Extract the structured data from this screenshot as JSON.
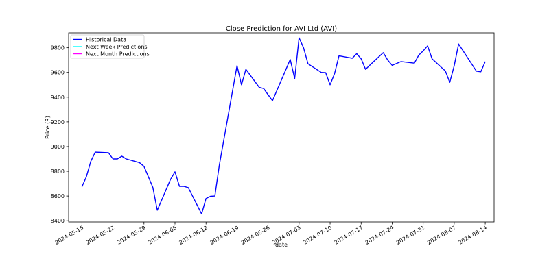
{
  "chart_data": {
    "type": "line",
    "title": "Close Prediction for AVI Ltd (AVI)",
    "xlabel": "date",
    "ylabel": "Price (R)",
    "xlim": [
      "2024-05-12",
      "2024-08-16"
    ],
    "ylim": [
      8390,
      9920
    ],
    "x_ticks": [
      "2024-05-15",
      "2024-05-22",
      "2024-05-29",
      "2024-06-05",
      "2024-06-12",
      "2024-06-19",
      "2024-06-26",
      "2024-07-03",
      "2024-07-10",
      "2024-07-17",
      "2024-07-24",
      "2024-07-31",
      "2024-08-07",
      "2024-08-14"
    ],
    "y_ticks": [
      8400,
      8600,
      8800,
      9000,
      9200,
      9400,
      9600,
      9800
    ],
    "grid": false,
    "legend_position": "top-left",
    "series": [
      {
        "name": "Historical Data",
        "color": "#0000ff",
        "points": [
          {
            "x": "2024-05-15",
            "y": 8675
          },
          {
            "x": "2024-05-16",
            "y": 8755
          },
          {
            "x": "2024-05-17",
            "y": 8880
          },
          {
            "x": "2024-05-18",
            "y": 8955
          },
          {
            "x": "2024-05-21",
            "y": 8950
          },
          {
            "x": "2024-05-22",
            "y": 8900
          },
          {
            "x": "2024-05-23",
            "y": 8900
          },
          {
            "x": "2024-05-24",
            "y": 8922
          },
          {
            "x": "2024-05-25",
            "y": 8900
          },
          {
            "x": "2024-05-28",
            "y": 8870
          },
          {
            "x": "2024-05-29",
            "y": 8840
          },
          {
            "x": "2024-05-31",
            "y": 8670
          },
          {
            "x": "2024-06-01",
            "y": 8485
          },
          {
            "x": "2024-06-04",
            "y": 8735
          },
          {
            "x": "2024-06-05",
            "y": 8795
          },
          {
            "x": "2024-06-06",
            "y": 8678
          },
          {
            "x": "2024-06-07",
            "y": 8678
          },
          {
            "x": "2024-06-08",
            "y": 8668
          },
          {
            "x": "2024-06-11",
            "y": 8455
          },
          {
            "x": "2024-06-12",
            "y": 8580
          },
          {
            "x": "2024-06-13",
            "y": 8598
          },
          {
            "x": "2024-06-14",
            "y": 8600
          },
          {
            "x": "2024-06-15",
            "y": 8850
          },
          {
            "x": "2024-06-19",
            "y": 9655
          },
          {
            "x": "2024-06-20",
            "y": 9500
          },
          {
            "x": "2024-06-21",
            "y": 9625
          },
          {
            "x": "2024-06-24",
            "y": 9480
          },
          {
            "x": "2024-06-25",
            "y": 9470
          },
          {
            "x": "2024-06-26",
            "y": 9420
          },
          {
            "x": "2024-06-27",
            "y": 9372
          },
          {
            "x": "2024-07-01",
            "y": 9705
          },
          {
            "x": "2024-07-02",
            "y": 9550
          },
          {
            "x": "2024-07-03",
            "y": 9880
          },
          {
            "x": "2024-07-04",
            "y": 9800
          },
          {
            "x": "2024-07-05",
            "y": 9670
          },
          {
            "x": "2024-07-08",
            "y": 9600
          },
          {
            "x": "2024-07-09",
            "y": 9598
          },
          {
            "x": "2024-07-10",
            "y": 9500
          },
          {
            "x": "2024-07-11",
            "y": 9590
          },
          {
            "x": "2024-07-12",
            "y": 9735
          },
          {
            "x": "2024-07-15",
            "y": 9715
          },
          {
            "x": "2024-07-16",
            "y": 9752
          },
          {
            "x": "2024-07-17",
            "y": 9710
          },
          {
            "x": "2024-07-18",
            "y": 9625
          },
          {
            "x": "2024-07-19",
            "y": 9660
          },
          {
            "x": "2024-07-22",
            "y": 9760
          },
          {
            "x": "2024-07-23",
            "y": 9700
          },
          {
            "x": "2024-07-24",
            "y": 9657
          },
          {
            "x": "2024-07-26",
            "y": 9688
          },
          {
            "x": "2024-07-29",
            "y": 9675
          },
          {
            "x": "2024-07-30",
            "y": 9740
          },
          {
            "x": "2024-07-31",
            "y": 9775
          },
          {
            "x": "2024-08-01",
            "y": 9815
          },
          {
            "x": "2024-08-02",
            "y": 9710
          },
          {
            "x": "2024-08-05",
            "y": 9612
          },
          {
            "x": "2024-08-06",
            "y": 9520
          },
          {
            "x": "2024-08-07",
            "y": 9655
          },
          {
            "x": "2024-08-08",
            "y": 9830
          },
          {
            "x": "2024-08-12",
            "y": 9610
          },
          {
            "x": "2024-08-13",
            "y": 9605
          },
          {
            "x": "2024-08-14",
            "y": 9688
          }
        ]
      },
      {
        "name": "Next Week Predictions",
        "color": "#00ffff",
        "points": []
      },
      {
        "name": "Next Month Predictions",
        "color": "#ff00ff",
        "points": []
      }
    ]
  }
}
